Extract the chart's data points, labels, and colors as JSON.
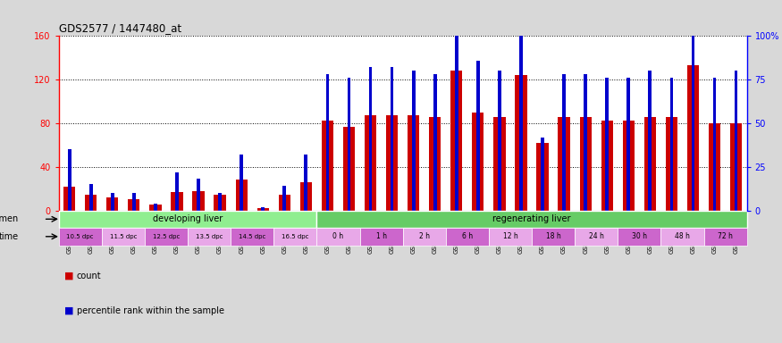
{
  "title": "GDS2577 / 1447480_at",
  "samples": [
    "GSM161128",
    "GSM161129",
    "GSM161130",
    "GSM161131",
    "GSM161132",
    "GSM161133",
    "GSM161134",
    "GSM161135",
    "GSM161136",
    "GSM161137",
    "GSM161138",
    "GSM161139",
    "GSM161108",
    "GSM161109",
    "GSM161110",
    "GSM161111",
    "GSM161112",
    "GSM161113",
    "GSM161114",
    "GSM161115",
    "GSM161116",
    "GSM161117",
    "GSM161118",
    "GSM161119",
    "GSM161120",
    "GSM161121",
    "GSM161122",
    "GSM161123",
    "GSM161124",
    "GSM161125",
    "GSM161126",
    "GSM161127"
  ],
  "count_values": [
    22,
    14,
    12,
    10,
    5,
    17,
    18,
    14,
    28,
    2,
    14,
    26,
    82,
    77,
    87,
    87,
    87,
    86,
    128,
    90,
    86,
    124,
    62,
    86,
    86,
    82,
    82,
    86,
    86,
    133,
    80,
    80
  ],
  "percentile_values": [
    35,
    15,
    10,
    10,
    4,
    22,
    18,
    10,
    32,
    2,
    14,
    32,
    78,
    76,
    82,
    82,
    80,
    78,
    100,
    86,
    80,
    100,
    42,
    78,
    78,
    76,
    76,
    80,
    76,
    110,
    76,
    80
  ],
  "ylim_left": [
    0,
    160
  ],
  "ylim_right": [
    0,
    100
  ],
  "yticks_left": [
    0,
    40,
    80,
    120,
    160
  ],
  "ytick_labels_left": [
    "0",
    "40",
    "80",
    "120",
    "160"
  ],
  "yticks_right": [
    0,
    25,
    50,
    75,
    100
  ],
  "ytick_labels_right": [
    "0",
    "25",
    "50",
    "75",
    "100%"
  ],
  "bar_color": "#cc0000",
  "percentile_color": "#0000cc",
  "background_color": "#d8d8d8",
  "plot_bg": "#ffffff",
  "dev_liver_color": "#90ee90",
  "reg_liver_color": "#66cc66",
  "dpc_color1": "#cc66cc",
  "dpc_color2": "#e8a8e8",
  "hour_color1": "#e8a8e8",
  "hour_color2": "#cc66cc",
  "dpc_labels": [
    "10.5 dpc",
    "11.5 dpc",
    "12.5 dpc",
    "13.5 dpc",
    "14.5 dpc",
    "16.5 dpc"
  ],
  "hour_labels": [
    "0 h",
    "1 h",
    "2 h",
    "6 h",
    "12 h",
    "18 h",
    "24 h",
    "30 h",
    "48 h",
    "72 h"
  ],
  "legend_count_label": "count",
  "legend_pct_label": "percentile rank within the sample"
}
